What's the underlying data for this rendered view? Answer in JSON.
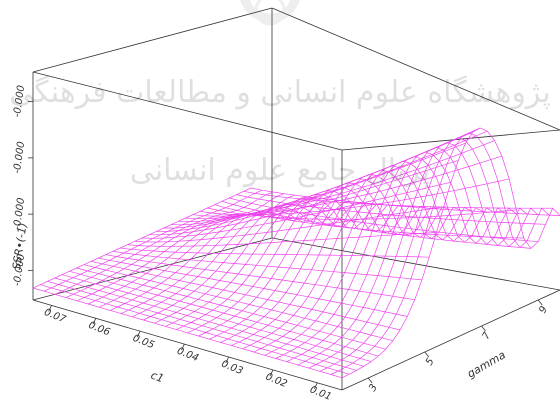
{
  "chart_data": {
    "type": "surface3d",
    "title": "",
    "zlabel": "SSR•(-1)",
    "xlabel": "c1",
    "ylabel": "gamma",
    "x_ticks": [
      "0.07",
      "0.06",
      "0.05",
      "0.04",
      "0.03",
      "0.02",
      "0.01"
    ],
    "y_ticks": [
      "3",
      "5",
      "7",
      "9"
    ],
    "z_ticks": [
      "-0.000",
      "-0.000",
      "-0.000",
      "-0.000"
    ],
    "xlim": [
      0.005,
      0.075
    ],
    "ylim": [
      2,
      10
    ],
    "grid_size": [
      28,
      30
    ],
    "mesh_color": "#ee44ee",
    "box_color": "#333333",
    "surface_description": "low flat region at high c1, rising ridge at low c1 and mid-to-high gamma peaking near c1 0.01, gamma 7-8, then dropping and a smaller bump near gamma 9-10"
  },
  "watermark": {
    "logo_alt": "seal-watermark",
    "line1": "پژوهشگاه علوم انسانی و مطالعات فرهنگی",
    "line2": "پرتال جامع علوم انسانی"
  }
}
